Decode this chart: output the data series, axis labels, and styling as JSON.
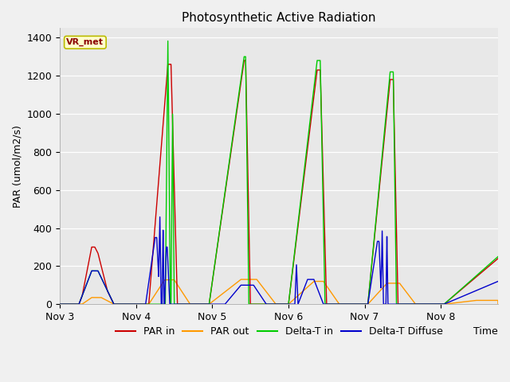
{
  "title": "Photosynthetic Active Radiation",
  "xlabel": "Time",
  "ylabel": "PAR (umol/m2/s)",
  "ylim": [
    0,
    1450
  ],
  "yticks": [
    0,
    200,
    400,
    600,
    800,
    1000,
    1200,
    1400
  ],
  "xlim": [
    3.0,
    8.75
  ],
  "xtick_positions": [
    3,
    4,
    5,
    6,
    7,
    8
  ],
  "xtick_labels": [
    "Nov 3",
    "Nov 4",
    "Nov 5",
    "Nov 6",
    "Nov 7",
    "Nov 8"
  ],
  "annotation_text": "VR_met",
  "legend_labels": [
    "PAR in",
    "PAR out",
    "Delta-T in",
    "Delta-T Diffuse"
  ],
  "line_colors": [
    "#cc0000",
    "#ff9900",
    "#00cc00",
    "#0000cc"
  ],
  "fig_bg_color": "#f0f0f0",
  "plot_bg_color": "#e8e8e8",
  "figsize": [
    6.4,
    4.8
  ],
  "dpi": 100
}
